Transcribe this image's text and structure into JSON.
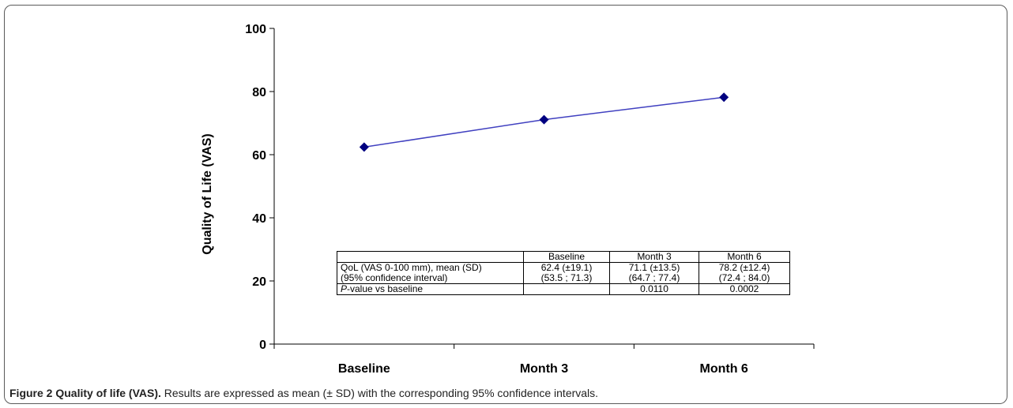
{
  "chart_data": {
    "type": "line",
    "categories": [
      "Baseline",
      "Month 3",
      "Month 6"
    ],
    "series": [
      {
        "values": [
          62.4,
          71.1,
          78.2
        ],
        "color": "#000080"
      }
    ],
    "ylabel": "Quality of Life (VAS)",
    "xlabel": "",
    "ylim": [
      0,
      100
    ],
    "yticks": [
      0,
      20,
      40,
      60,
      80,
      100
    ],
    "grid": false,
    "legend": "none"
  },
  "table": {
    "headers": [
      "",
      "Baseline",
      "Month 3",
      "Month 6"
    ],
    "row1": {
      "label_line1": "QoL (VAS 0-100 mm), mean (SD)",
      "label_line2": "(95% confidence interval)",
      "baseline_line1": "62.4 (±19.1)",
      "baseline_line2": "(53.5 ; 71.3)",
      "month3_line1": "71.1 (±13.5)",
      "month3_line2": "(64.7 ; 77.4)",
      "month6_line1": "78.2 (±12.4)",
      "month6_line2": "(72.4 ; 84.0)"
    },
    "row2": {
      "label_italic": "P",
      "label_rest": "-value vs baseline",
      "baseline": "",
      "month3": "0.0110",
      "month6": "0.0002"
    }
  },
  "caption": {
    "figure": "Figure 2 Quality of life (VAS).",
    "text": " Results are expressed as mean (± SD) with the corresponding 95% confidence intervals."
  },
  "colors": {
    "line": "#4040c0",
    "marker": "#000080",
    "axis": "#000000"
  }
}
